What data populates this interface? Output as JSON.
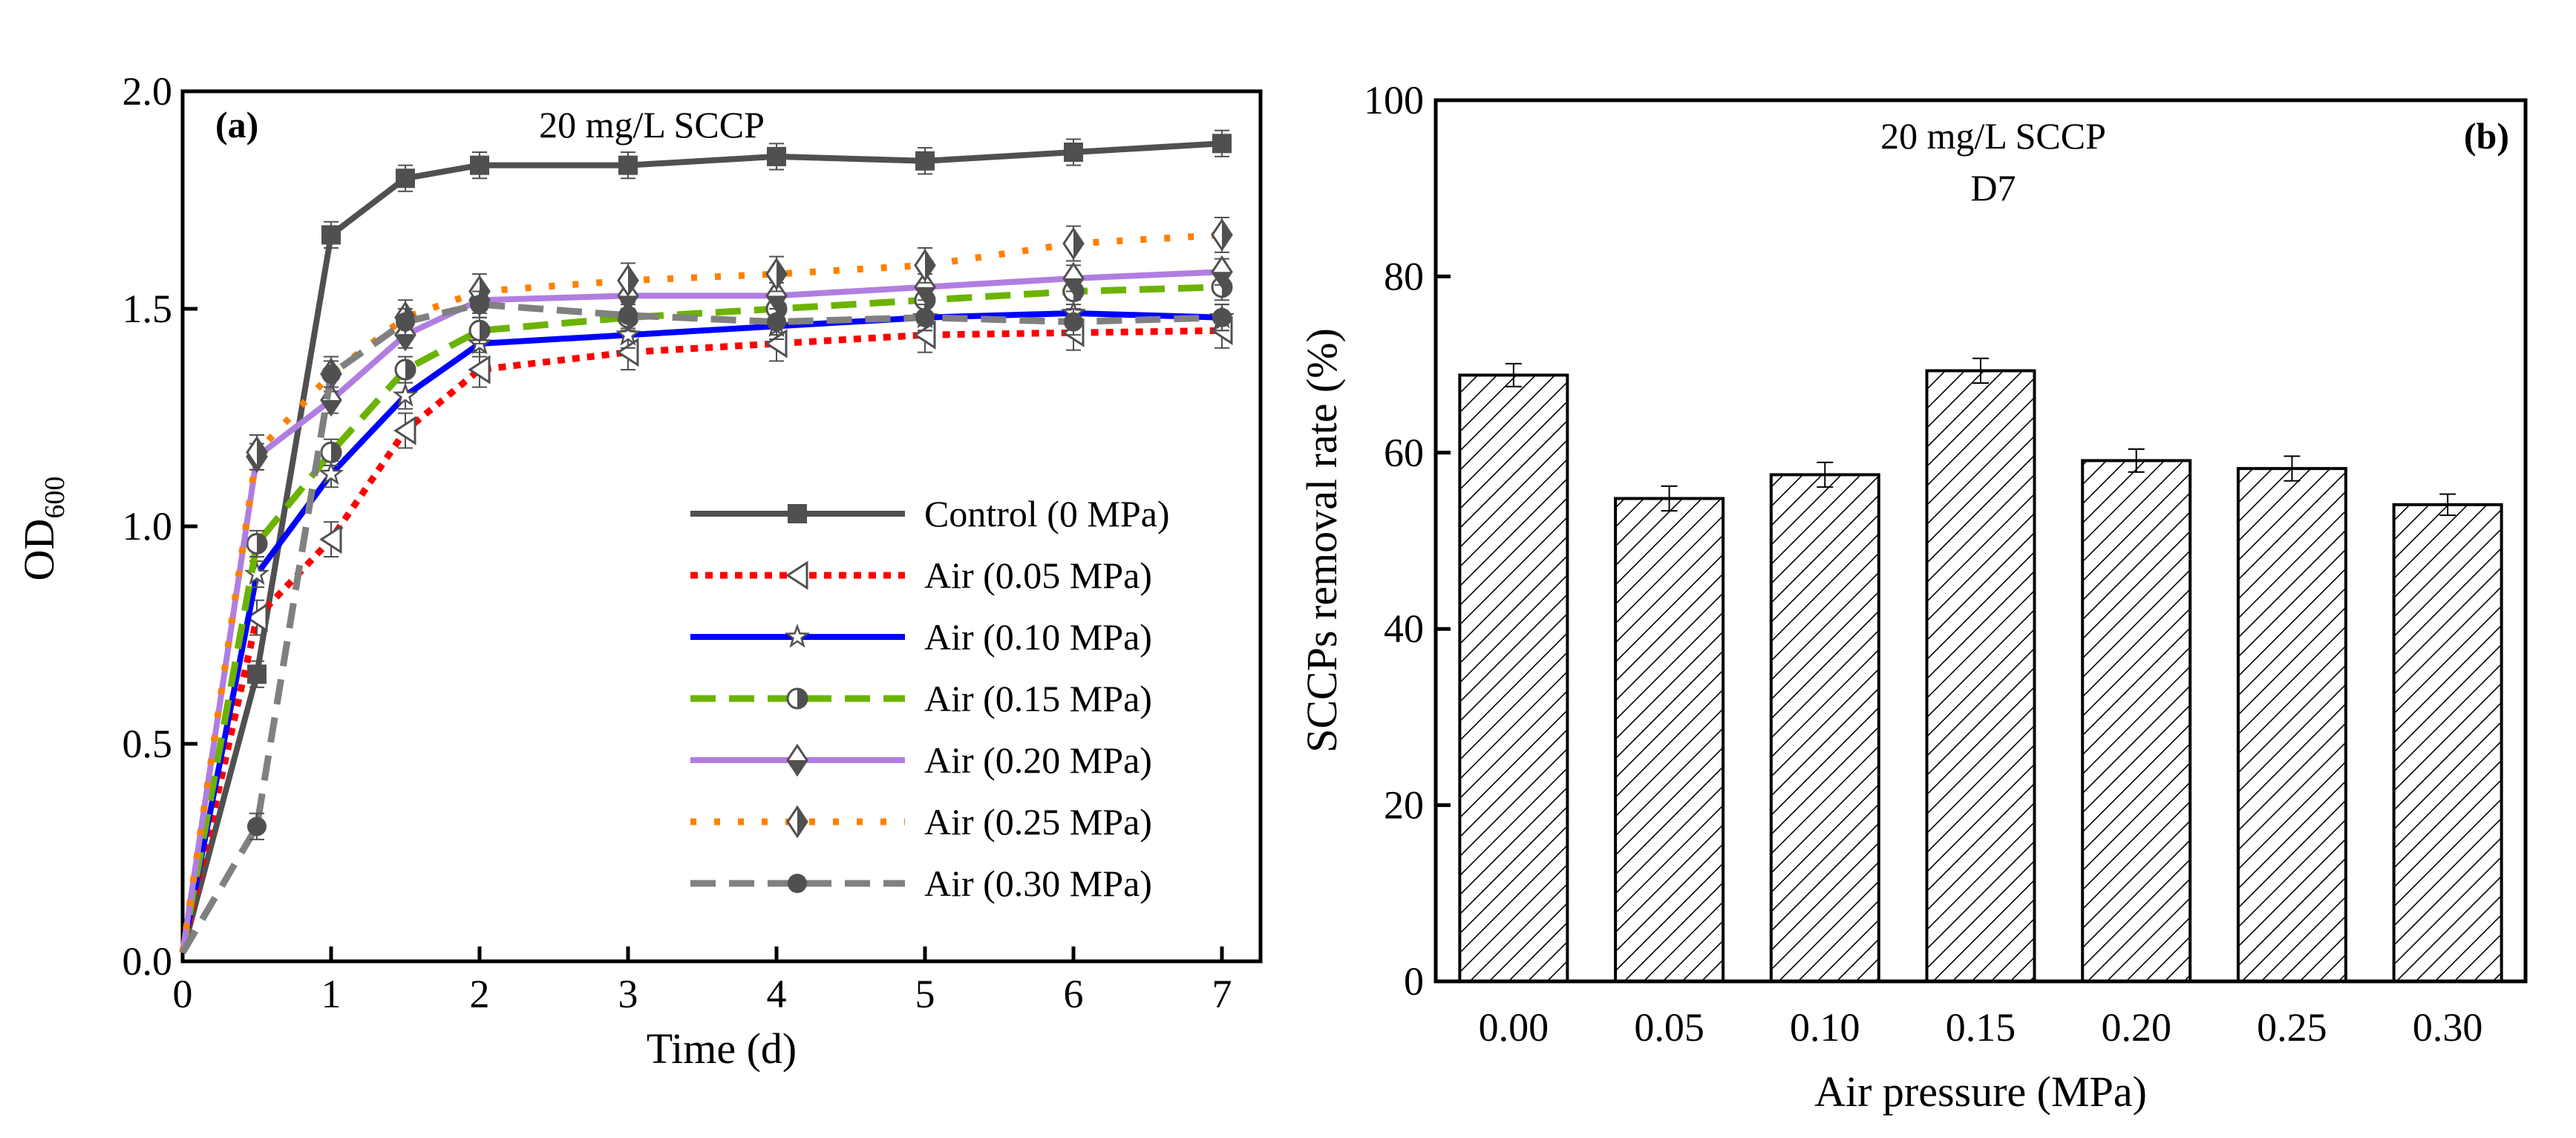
{
  "chart_data": [
    {
      "type": "line",
      "panel_label": "(a)",
      "title": "20 mg/L SCCP",
      "xlabel": "Time (d)",
      "ylabel_main": "OD",
      "ylabel_sub": "600",
      "xlim": [
        0,
        7.26
      ],
      "ylim": [
        0,
        2.0
      ],
      "xticks": [
        "0",
        "1",
        "2",
        "3",
        "4",
        "5",
        "6",
        "7"
      ],
      "yticks": [
        "0.0",
        "0.5",
        "1.0",
        "1.5",
        "2.0"
      ],
      "legend_position": "bottom-right",
      "x": [
        0,
        0.5,
        1,
        1.5,
        2,
        3,
        4,
        5,
        6,
        7
      ],
      "series": [
        {
          "name": "Control (0 MPa)",
          "color": "#505050",
          "dash": "solid",
          "marker": "square",
          "values": [
            0.02,
            0.66,
            1.67,
            1.8,
            1.83,
            1.83,
            1.85,
            1.84,
            1.86,
            1.88
          ],
          "error": 0.03
        },
        {
          "name": "Air (0.05 MPa)",
          "color": "#ff0000",
          "dash": "dot",
          "marker": "left-triangle",
          "values": [
            0.02,
            0.79,
            0.97,
            1.22,
            1.36,
            1.4,
            1.42,
            1.44,
            1.445,
            1.45
          ],
          "error": 0.04
        },
        {
          "name": "Air (0.10 MPa)",
          "color": "#0000ff",
          "dash": "solid",
          "marker": "star",
          "values": [
            0.02,
            0.89,
            1.12,
            1.3,
            1.42,
            1.44,
            1.46,
            1.48,
            1.49,
            1.48
          ],
          "error": 0.03
        },
        {
          "name": "Air (0.15 MPa)",
          "color": "#6bb300",
          "dash": "dash",
          "marker": "half-circle",
          "values": [
            0.02,
            0.96,
            1.17,
            1.36,
            1.45,
            1.48,
            1.5,
            1.52,
            1.54,
            1.55
          ],
          "error": 0.03
        },
        {
          "name": "Air (0.20 MPa)",
          "color": "#b07ee0",
          "dash": "solid",
          "marker": "half-diamond",
          "values": [
            0.02,
            1.16,
            1.29,
            1.44,
            1.52,
            1.53,
            1.53,
            1.55,
            1.57,
            1.585
          ],
          "error": 0.03
        },
        {
          "name": "Air (0.25 MPa)",
          "color": "#ff8000",
          "dash": "sparse-dot",
          "marker": "half-diamond-right",
          "values": [
            0.02,
            1.17,
            1.35,
            1.48,
            1.54,
            1.565,
            1.58,
            1.6,
            1.65,
            1.67
          ],
          "error": 0.04
        },
        {
          "name": "Air (0.30 MPa)",
          "color": "#808080",
          "dash": "dash",
          "marker": "circle",
          "values": [
            0.02,
            0.31,
            1.35,
            1.47,
            1.51,
            1.485,
            1.47,
            1.48,
            1.47,
            1.48
          ],
          "error": 0.03
        }
      ]
    },
    {
      "type": "bar",
      "panel_label": "(b)",
      "title": "20 mg/L SCCP",
      "subtitle": "D7",
      "xlabel": "Air pressure (MPa)",
      "ylabel": "SCCPs removal rate (%)",
      "ylim": [
        0,
        100
      ],
      "yticks": [
        "0",
        "20",
        "40",
        "60",
        "80",
        "100"
      ],
      "categories": [
        "0.00",
        "0.05",
        "0.10",
        "0.15",
        "0.20",
        "0.25",
        "0.30"
      ],
      "values": [
        68.8,
        54.8,
        57.5,
        69.3,
        59.1,
        58.2,
        54.1
      ],
      "errors": [
        1.3,
        1.4,
        1.4,
        1.4,
        1.3,
        1.4,
        1.2
      ],
      "fill": "hatched"
    }
  ]
}
